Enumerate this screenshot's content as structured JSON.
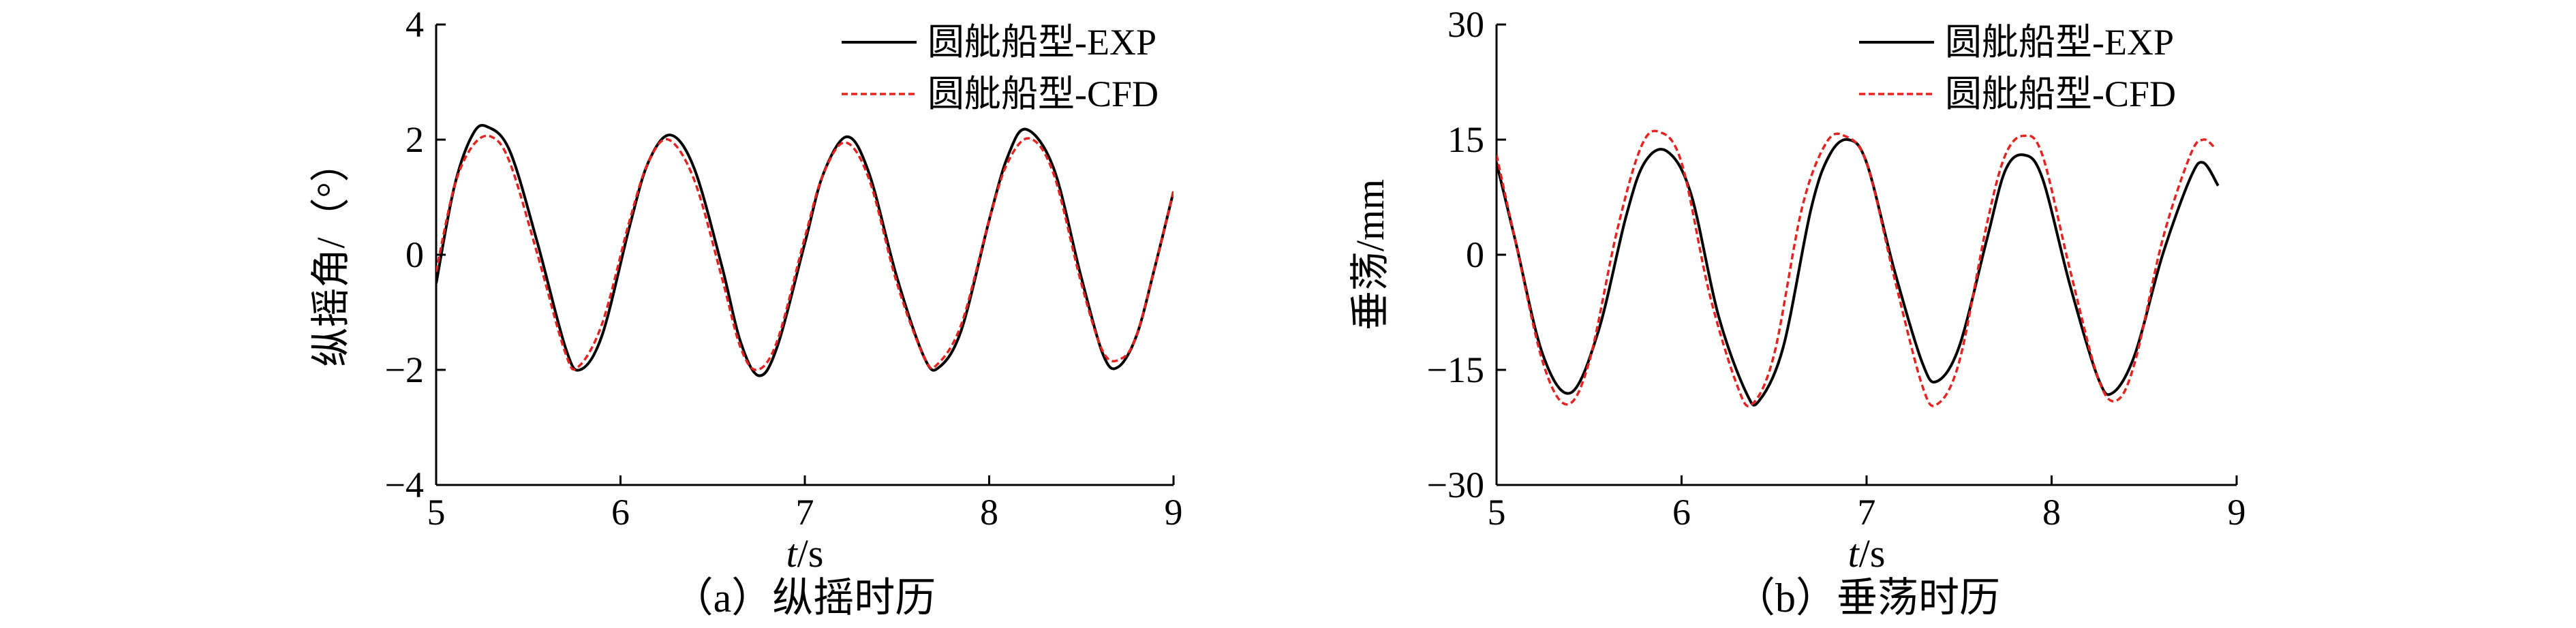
{
  "chart_data": [
    {
      "type": "line",
      "caption": "（a）纵摇时历",
      "xlabel_italic": "t",
      "xlabel_unit": "/s",
      "ylabel": "纵摇角/（°）",
      "xlim": [
        5,
        9
      ],
      "ylim": [
        -4,
        4
      ],
      "xticks": [
        "5",
        "6",
        "7",
        "8",
        "9"
      ],
      "yticks": [
        "4",
        "2",
        "0",
        "−2",
        "−4"
      ],
      "legend_position": "top-right",
      "series": [
        {
          "name": "圆舭船型-EXP",
          "color": "#000000",
          "style": "solid",
          "x": [
            5.0,
            5.1,
            5.2,
            5.28,
            5.4,
            5.55,
            5.7,
            5.78,
            5.9,
            6.05,
            6.15,
            6.27,
            6.4,
            6.55,
            6.65,
            6.75,
            6.85,
            7.0,
            7.1,
            7.23,
            7.35,
            7.5,
            7.65,
            7.73,
            7.85,
            8.0,
            8.1,
            8.2,
            8.35,
            8.5,
            8.62,
            8.7,
            8.8,
            8.9,
            9.0
          ],
          "y": [
            -0.5,
            1.2,
            2.1,
            2.22,
            1.8,
            0.2,
            -1.6,
            -2.0,
            -1.4,
            0.5,
            1.6,
            2.08,
            1.5,
            -0.2,
            -1.5,
            -2.1,
            -1.6,
            0.2,
            1.4,
            2.05,
            1.4,
            -0.4,
            -1.8,
            -1.95,
            -1.3,
            0.6,
            1.7,
            2.18,
            1.5,
            -0.4,
            -1.75,
            -1.95,
            -1.4,
            -0.2,
            1.1
          ]
        },
        {
          "name": "圆舭船型-CFD",
          "color": "#e8231f",
          "style": "dashed",
          "x": [
            5.0,
            5.1,
            5.2,
            5.3,
            5.4,
            5.55,
            5.7,
            5.77,
            5.9,
            6.05,
            6.15,
            6.26,
            6.4,
            6.55,
            6.65,
            6.74,
            6.85,
            7.0,
            7.1,
            7.22,
            7.35,
            7.5,
            7.65,
            7.72,
            7.85,
            8.0,
            8.1,
            8.22,
            8.35,
            8.5,
            8.62,
            8.72,
            8.8,
            8.9,
            9.0
          ],
          "y": [
            -0.3,
            1.2,
            1.9,
            2.05,
            1.6,
            0.0,
            -1.7,
            -1.95,
            -1.2,
            0.6,
            1.6,
            2.0,
            1.3,
            -0.4,
            -1.6,
            -2.0,
            -1.5,
            0.3,
            1.4,
            1.95,
            1.3,
            -0.5,
            -1.8,
            -1.9,
            -1.2,
            0.6,
            1.6,
            2.02,
            1.4,
            -0.5,
            -1.7,
            -1.8,
            -1.4,
            -0.2,
            1.1
          ]
        }
      ]
    },
    {
      "type": "line",
      "caption": "（b）垂荡时历",
      "xlabel_italic": "t",
      "xlabel_unit": "/s",
      "ylabel": "垂荡/mm",
      "xlim": [
        5,
        9
      ],
      "ylim": [
        -30,
        30
      ],
      "xticks": [
        "5",
        "6",
        "7",
        "8",
        "9"
      ],
      "yticks": [
        "30",
        "15",
        "0",
        "−15",
        "−30"
      ],
      "legend_position": "top-right",
      "series": [
        {
          "name": "圆舭船型-EXP",
          "color": "#000000",
          "style": "solid",
          "x": [
            5.0,
            5.1,
            5.25,
            5.4,
            5.55,
            5.7,
            5.8,
            5.92,
            6.05,
            6.2,
            6.35,
            6.42,
            6.55,
            6.7,
            6.8,
            6.9,
            7.0,
            7.15,
            7.3,
            7.38,
            7.5,
            7.65,
            7.75,
            7.85,
            7.95,
            8.1,
            8.25,
            8.33,
            8.45,
            8.6,
            8.75,
            8.82,
            8.9
          ],
          "y": [
            12,
            2,
            -13,
            -18,
            -10,
            5,
            12,
            13.5,
            8,
            -8,
            -18,
            -19,
            -12,
            6,
            13,
            15,
            12,
            -2,
            -14,
            -16.5,
            -12,
            2,
            11,
            13,
            10,
            -4,
            -16,
            -18,
            -13,
            0,
            10,
            12,
            9
          ]
        },
        {
          "name": "圆舭船型-CFD",
          "color": "#e8231f",
          "style": "dashed",
          "x": [
            5.0,
            5.1,
            5.25,
            5.38,
            5.5,
            5.65,
            5.78,
            5.88,
            6.0,
            6.15,
            6.3,
            6.38,
            6.5,
            6.65,
            6.78,
            6.88,
            7.0,
            7.15,
            7.3,
            7.38,
            7.5,
            7.65,
            7.75,
            7.85,
            7.95,
            8.1,
            8.25,
            8.35,
            8.45,
            8.6,
            8.75,
            8.82,
            8.88
          ],
          "y": [
            13,
            2,
            -14,
            -19.5,
            -14,
            3,
            14,
            16,
            12,
            -5,
            -17,
            -19.5,
            -13,
            6,
            14.5,
            15.5,
            12,
            -3,
            -17,
            -19.5,
            -14,
            4,
            13,
            15.5,
            13,
            -2,
            -16,
            -19,
            -14,
            2,
            13,
            15,
            14
          ]
        }
      ]
    }
  ]
}
